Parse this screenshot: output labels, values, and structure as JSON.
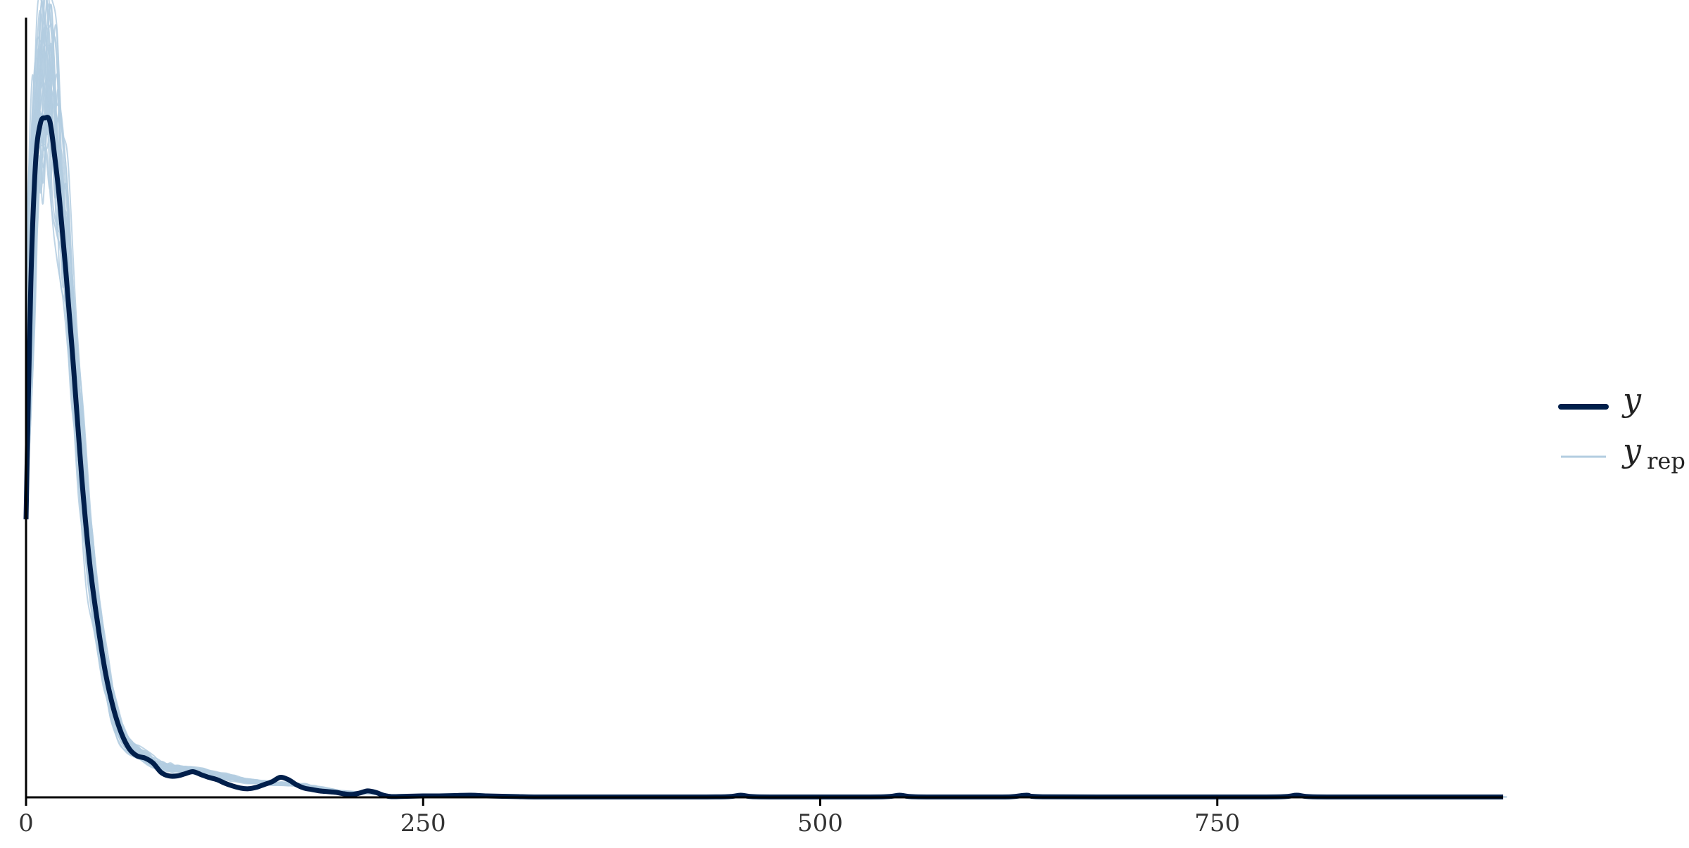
{
  "chart_data": {
    "type": "line",
    "title": "",
    "xlabel": "",
    "ylabel": "",
    "xlim": [
      0,
      930
    ],
    "ylim": [
      0,
      1
    ],
    "x_ticks": [
      0,
      250,
      500,
      750
    ],
    "x_tick_labels": [
      "0",
      "250",
      "500",
      "750"
    ],
    "y_ticks_shown": false,
    "grid": false,
    "legend_position": "right",
    "legend": [
      {
        "label": "y",
        "style": "thick",
        "color": "#011f4b"
      },
      {
        "label": "y",
        "subscript": "rep",
        "style": "thin",
        "color": "#b3cde0"
      }
    ],
    "series": [
      {
        "name": "y",
        "color": "#011f4b",
        "x": [
          0,
          3,
          6,
          9,
          12,
          15,
          18,
          21,
          25,
          30,
          35,
          40,
          45,
          50,
          55,
          60,
          65,
          70,
          75,
          80,
          85,
          90,
          95,
          100,
          105,
          110,
          115,
          120,
          125,
          130,
          135,
          140,
          145,
          150,
          155,
          160,
          165,
          170,
          175,
          180,
          185,
          190,
          195,
          200,
          205,
          210,
          215,
          220,
          225,
          230,
          240,
          250,
          260,
          270,
          280,
          290,
          300,
          310,
          320,
          340,
          360,
          400,
          440,
          450,
          460,
          500,
          540,
          550,
          560,
          600,
          620,
          630,
          640,
          700,
          750,
          790,
          800,
          810,
          850,
          900,
          930
        ],
        "y": [
          0.39,
          0.72,
          0.89,
          0.945,
          0.953,
          0.948,
          0.9,
          0.84,
          0.74,
          0.6,
          0.45,
          0.33,
          0.245,
          0.175,
          0.125,
          0.09,
          0.068,
          0.058,
          0.055,
          0.048,
          0.035,
          0.03,
          0.03,
          0.033,
          0.036,
          0.032,
          0.028,
          0.025,
          0.02,
          0.016,
          0.013,
          0.012,
          0.014,
          0.018,
          0.022,
          0.028,
          0.025,
          0.018,
          0.013,
          0.011,
          0.009,
          0.008,
          0.007,
          0.005,
          0.004,
          0.006,
          0.009,
          0.007,
          0.003,
          0.001,
          0.0015,
          0.002,
          0.002,
          0.0025,
          0.003,
          0.002,
          0.0015,
          0.001,
          0.0005,
          0.0005,
          0.0005,
          0.0005,
          0.0008,
          0.003,
          0.0008,
          0.0005,
          0.0008,
          0.003,
          0.0008,
          0.0005,
          0.0008,
          0.003,
          0.0008,
          0.0005,
          0.0005,
          0.0008,
          0.003,
          0.0008,
          0.0005,
          0.0005,
          0.0005
        ]
      },
      {
        "name": "y",
        "subscript": "rep",
        "color": "#b3cde0",
        "draws": 40,
        "x": [
          0,
          3,
          6,
          9,
          12,
          15,
          18,
          21,
          25,
          30,
          35,
          40,
          45,
          50,
          55,
          60,
          65,
          70,
          75,
          80,
          85,
          90,
          95,
          100,
          105,
          110,
          115,
          120,
          125,
          130,
          135,
          140,
          145,
          150,
          155,
          160,
          165,
          170,
          175,
          180,
          185,
          190,
          195,
          200,
          205,
          210,
          215,
          220,
          225,
          230,
          240,
          250,
          260,
          270,
          280,
          290,
          300,
          310,
          320,
          340,
          360,
          400,
          440,
          450,
          460,
          500,
          540,
          550,
          560,
          600,
          620,
          630,
          640,
          700,
          750,
          790,
          800,
          810,
          850,
          900,
          930
        ],
        "y": [
          0.39,
          0.74,
          0.92,
          0.99,
          1.02,
          1.0,
          0.95,
          0.87,
          0.77,
          0.62,
          0.47,
          0.34,
          0.25,
          0.18,
          0.125,
          0.09,
          0.072,
          0.063,
          0.057,
          0.05,
          0.045,
          0.042,
          0.04,
          0.039,
          0.038,
          0.036,
          0.034,
          0.032,
          0.029,
          0.027,
          0.025,
          0.023,
          0.022,
          0.021,
          0.02,
          0.019,
          0.019,
          0.018,
          0.017,
          0.015,
          0.013,
          0.011,
          0.009,
          0.008,
          0.007,
          0.006,
          0.006,
          0.005,
          0.004,
          0.003,
          0.003,
          0.003,
          0.003,
          0.003,
          0.003,
          0.002,
          0.002,
          0.0015,
          0.001,
          0.0008,
          0.0006,
          0.0005,
          0.0005,
          0.0006,
          0.0005,
          0.0005,
          0.0005,
          0.0007,
          0.0005,
          0.0005,
          0.0006,
          0.001,
          0.0006,
          0.0005,
          0.0005,
          0.0005,
          0.0006,
          0.0005,
          0.0005,
          0.0005,
          0.0005
        ]
      }
    ]
  }
}
